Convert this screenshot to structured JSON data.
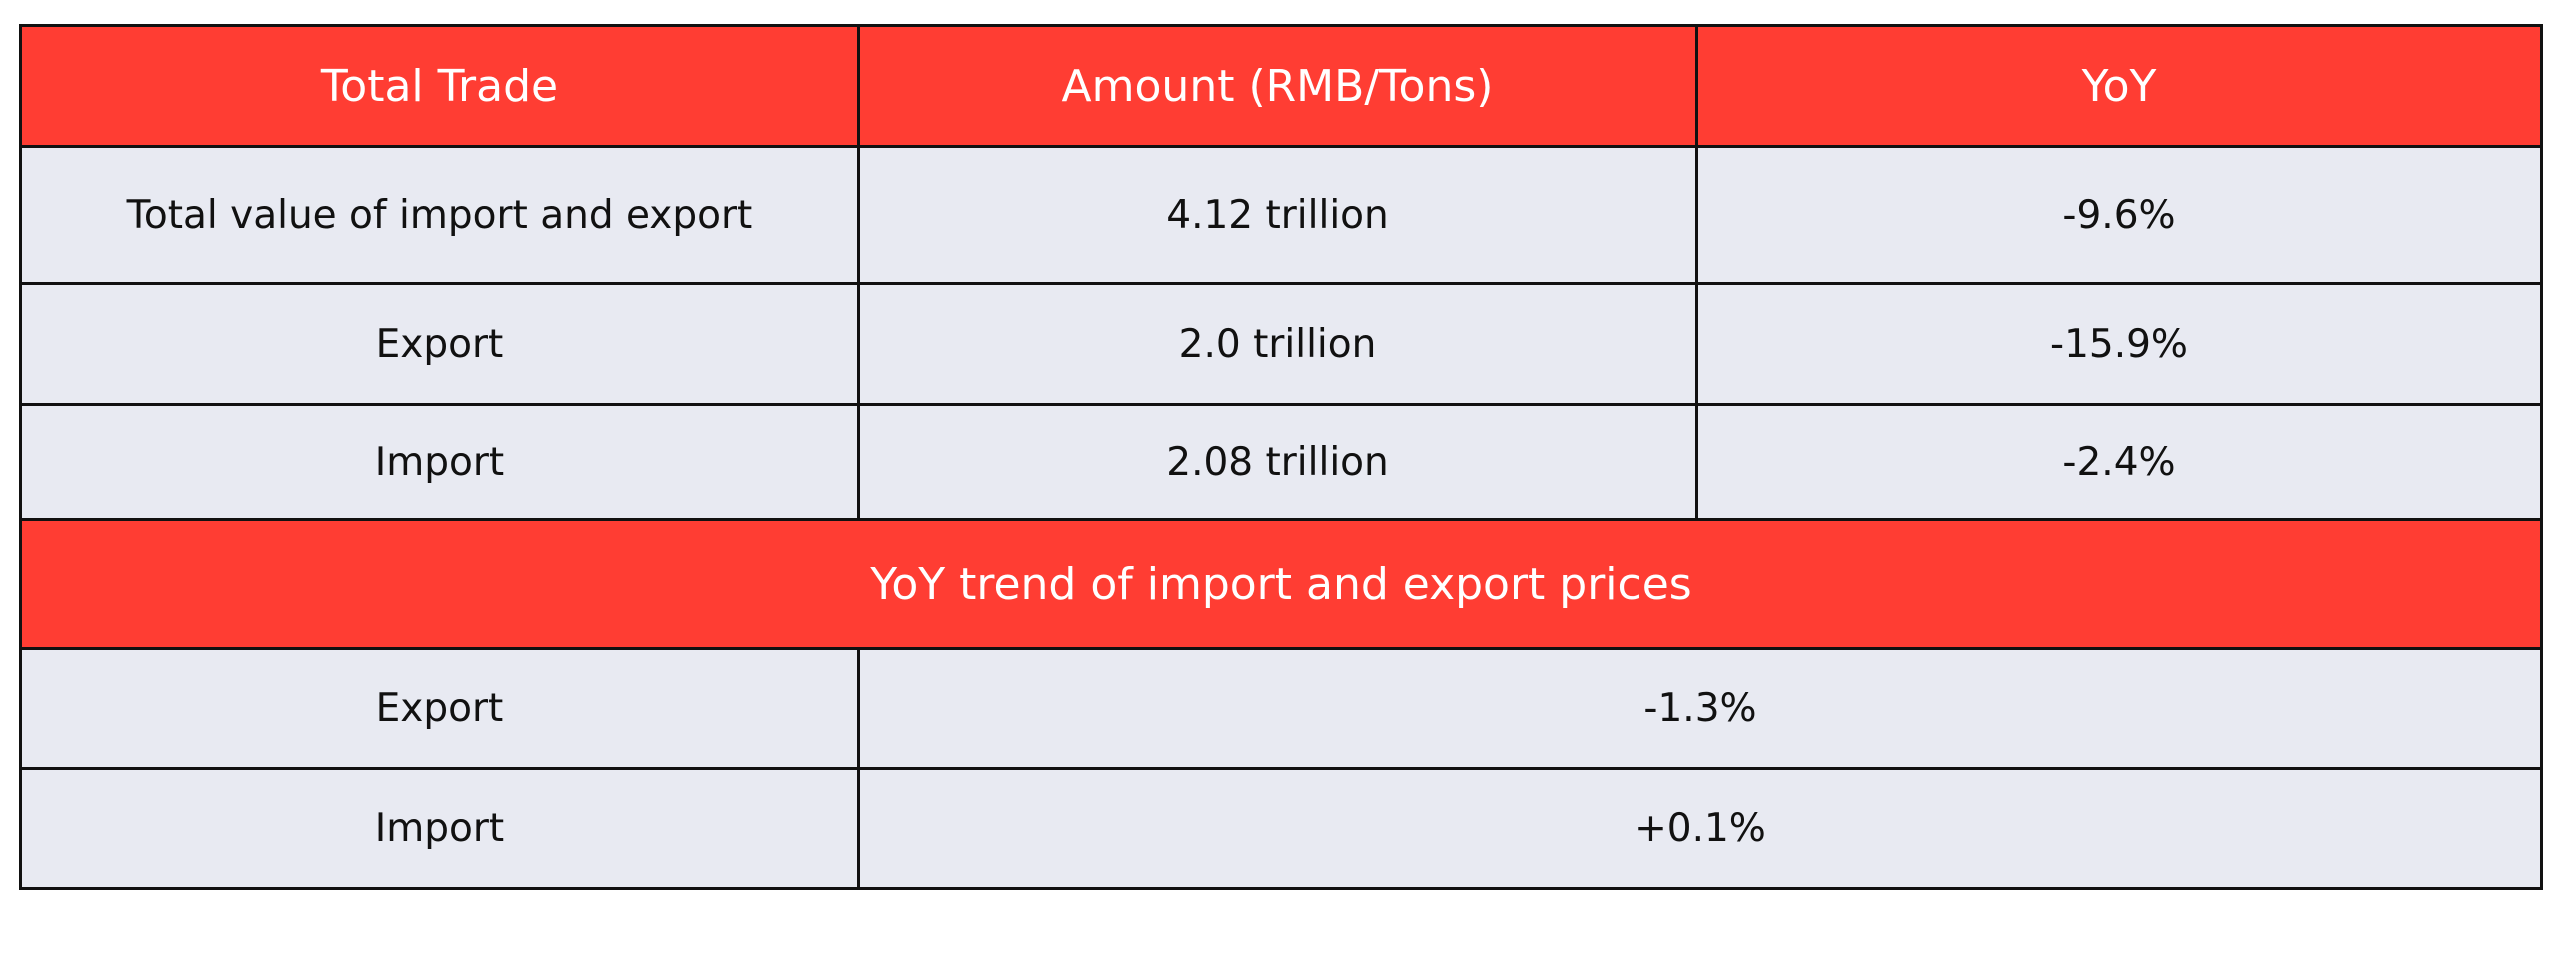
{
  "table": {
    "header": {
      "col1": "Total Trade",
      "col2": "Amount (RMB/Tons)",
      "col3": "YoY"
    },
    "rows": [
      {
        "label": "Total value of import and export",
        "amount": "4.12 trillion",
        "yoy": "-9.6%"
      },
      {
        "label": "Export",
        "amount": "2.0 trillion",
        "yoy": "-15.9%"
      },
      {
        "label": "Import",
        "amount": "2.08 trillion",
        "yoy": "-2.4%"
      }
    ],
    "section_title": "YoY trend of import and export prices",
    "price_rows": [
      {
        "label": "Export",
        "value": "-1.3%"
      },
      {
        "label": "Import",
        "value": "+0.1%"
      }
    ],
    "colors": {
      "header_bg": "#ff3d33",
      "header_text": "#ffffff",
      "cell_bg": "#e8eaf2",
      "border": "#111111"
    }
  }
}
